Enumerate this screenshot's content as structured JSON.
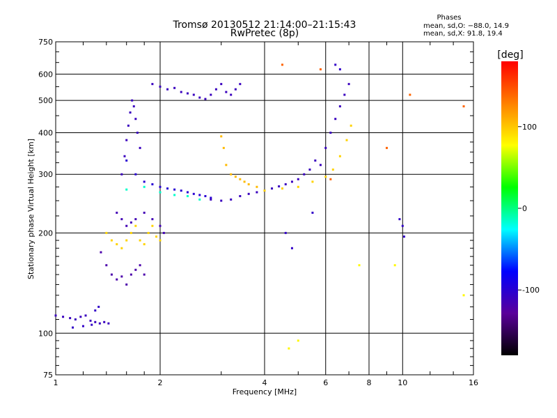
{
  "chart_data": {
    "type": "scatter",
    "title": "Tromsø 20130512 21:14:00–21:15:43",
    "subtitle": "RwPretec (8p)",
    "stats": {
      "heading": "Phases",
      "line1": "mean, sd,O: −88.0, 14.9",
      "line2": "mean, sd,X:  91.8, 19.4"
    },
    "xlabel": "Frequency [MHz]",
    "ylabel": "Stationary phase Virtual Height [km]",
    "xscale": "log",
    "yscale": "log",
    "xlim": [
      1,
      16
    ],
    "ylim": [
      75,
      750
    ],
    "xticks": [
      1,
      2,
      4,
      6,
      8,
      10,
      16
    ],
    "yticks": [
      75,
      100,
      200,
      300,
      400,
      500,
      600,
      750
    ],
    "grid": true,
    "colorbar": {
      "label": "[deg]",
      "range": [
        -180,
        180
      ],
      "ticks": [
        100,
        0,
        -100
      ],
      "colormap": "rainbow",
      "colors": [
        "#000000",
        "#5a009a",
        "#0000ff",
        "#00ffff",
        "#00ff00",
        "#ffff00",
        "#ff8000",
        "#ff0000"
      ]
    },
    "series": [
      {
        "x": [
          1.0,
          1.05,
          1.1,
          1.14,
          1.18,
          1.22,
          1.26,
          1.3,
          1.34,
          1.38,
          1.42
        ],
        "y": [
          113,
          112,
          111,
          110,
          112,
          113,
          109,
          108,
          107,
          108,
          107
        ],
        "phase": -110
      },
      {
        "x": [
          1.12,
          1.2,
          1.27,
          1.3,
          1.33
        ],
        "y": [
          104,
          105,
          106,
          117,
          120
        ],
        "phase": -105
      },
      {
        "x": [
          1.35,
          1.4,
          1.45,
          1.5,
          1.55,
          1.6,
          1.65,
          1.7,
          1.75,
          1.8
        ],
        "y": [
          175,
          160,
          150,
          145,
          148,
          140,
          150,
          155,
          160,
          150
        ],
        "phase": -120
      },
      {
        "x": [
          1.4,
          1.45,
          1.5,
          1.55,
          1.6,
          1.65,
          1.7,
          1.75,
          1.8,
          1.85,
          1.9,
          1.95,
          2.0
        ],
        "y": [
          200,
          190,
          185,
          180,
          190,
          200,
          210,
          190,
          185,
          200,
          210,
          195,
          190
        ],
        "phase": 95
      },
      {
        "x": [
          1.5,
          1.55,
          1.6,
          1.65,
          1.7,
          1.8,
          1.9,
          2.0,
          2.05
        ],
        "y": [
          230,
          220,
          210,
          215,
          220,
          230,
          220,
          210,
          200
        ],
        "phase": -115
      },
      {
        "x": [
          1.55,
          1.58,
          1.6,
          1.62,
          1.64,
          1.66,
          1.68,
          1.7,
          1.72,
          1.75
        ],
        "y": [
          300,
          340,
          380,
          420,
          460,
          500,
          480,
          440,
          400,
          360
        ],
        "phase": -110
      },
      {
        "x": [
          1.6,
          1.7,
          1.8,
          1.9,
          2.0,
          2.1,
          2.2,
          2.3,
          2.4,
          2.5,
          2.6,
          2.7,
          2.8
        ],
        "y": [
          330,
          300,
          285,
          280,
          275,
          272,
          270,
          268,
          265,
          262,
          260,
          258,
          255
        ],
        "phase": -100
      },
      {
        "x": [
          1.6,
          1.8,
          2.0,
          2.2,
          2.4,
          2.6
        ],
        "y": [
          270,
          275,
          265,
          260,
          258,
          252
        ],
        "phase": -15
      },
      {
        "x": [
          1.9,
          2.0,
          2.1,
          2.2,
          2.3,
          2.4,
          2.5,
          2.6,
          2.7
        ],
        "y": [
          560,
          550,
          540,
          545,
          530,
          525,
          520,
          510,
          505
        ],
        "phase": -110
      },
      {
        "x": [
          2.8,
          2.9,
          3.0,
          3.1,
          3.2,
          3.3,
          3.4
        ],
        "y": [
          520,
          540,
          560,
          530,
          520,
          540,
          560
        ],
        "phase": -110
      },
      {
        "x": [
          2.8,
          3.0,
          3.2,
          3.4,
          3.6,
          3.8,
          4.0,
          4.2,
          4.4,
          4.6,
          4.8,
          5.0,
          5.2,
          5.4,
          5.6
        ],
        "y": [
          252,
          250,
          252,
          258,
          262,
          265,
          268,
          272,
          276,
          280,
          285,
          290,
          300,
          310,
          330
        ],
        "phase": -110
      },
      {
        "x": [
          3.0,
          3.05,
          3.1,
          3.2,
          3.3,
          3.4,
          3.5,
          3.6,
          3.8
        ],
        "y": [
          390,
          360,
          320,
          300,
          295,
          290,
          285,
          280,
          275
        ],
        "phase": 105
      },
      {
        "x": [
          4.0,
          4.5,
          5.0,
          5.5,
          6.0,
          6.3,
          6.6,
          6.9,
          7.1
        ],
        "y": [
          268,
          272,
          275,
          285,
          295,
          310,
          340,
          380,
          420
        ],
        "phase": 95
      },
      {
        "x": [
          5.8,
          6.0,
          6.2,
          6.4,
          6.6,
          6.8,
          7.0
        ],
        "y": [
          320,
          360,
          400,
          440,
          480,
          520,
          560
        ],
        "phase": -110
      },
      {
        "x": [
          4.6,
          4.8,
          5.5,
          6.4,
          6.6,
          9.8,
          10.0,
          10.1
        ],
        "y": [
          200,
          180,
          230,
          640,
          620,
          220,
          210,
          195
        ],
        "phase": -105
      },
      {
        "x": [
          4.7,
          5.0,
          7.5,
          9.5,
          15.0
        ],
        "y": [
          90,
          95,
          160,
          160,
          130
        ],
        "phase": 80
      },
      {
        "x": [
          4.5,
          5.8,
          6.2,
          9.0,
          10.5,
          15.0
        ],
        "y": [
          640,
          620,
          290,
          360,
          520,
          480
        ],
        "phase": 140
      }
    ]
  }
}
